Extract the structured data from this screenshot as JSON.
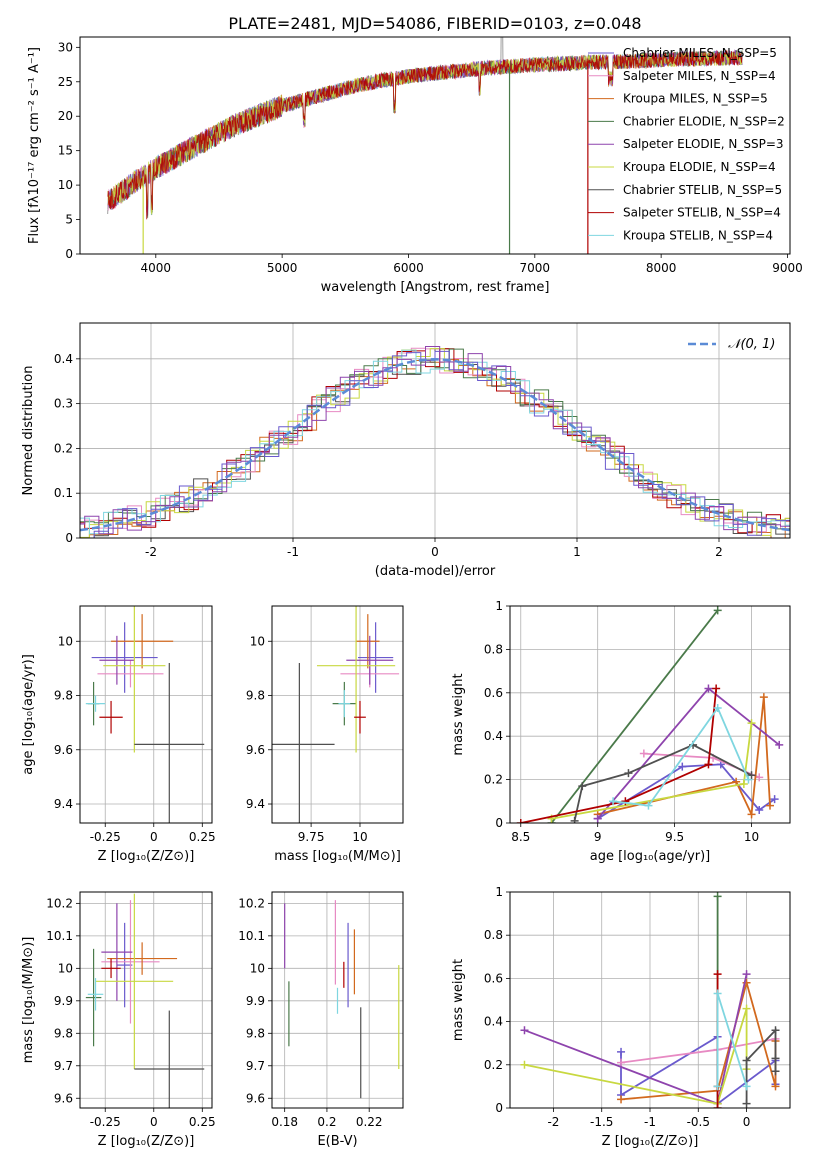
{
  "figure": {
    "title": "PLATE=2481, MJD=54086, FIBERID=0103, z=0.048"
  },
  "colors": [
    "#6a5acd",
    "#e78ac3",
    "#d2691e",
    "#4a7a4a",
    "#8e44ad",
    "#c8d840",
    "#505050",
    "#b00000",
    "#7fd6e0"
  ],
  "chart_data": [
    {
      "id": "spectrum",
      "type": "line",
      "xlabel": "wavelength [Angstrom, rest frame]",
      "ylabel": "Flux [fλ10⁻¹⁷ erg cm⁻² s⁻¹ A⁻¹]",
      "xlim": [
        3400,
        9020
      ],
      "ylim": [
        0,
        31.5
      ],
      "xticks": [
        4000,
        5000,
        6000,
        7000,
        8000,
        9000
      ],
      "yticks": [
        0,
        5,
        10,
        15,
        20,
        25,
        30
      ],
      "x": [
        3620,
        3800,
        4000,
        4200,
        4400,
        4600,
        4800,
        5000,
        5200,
        5400,
        5600,
        5800,
        6000,
        6200,
        6400,
        6600,
        6800,
        7000,
        7200,
        7400,
        7600,
        7800,
        8000,
        8200,
        8400,
        8600
      ],
      "y": [
        7.5,
        10,
        12.5,
        14.5,
        16.5,
        18.5,
        20,
        21.5,
        22.5,
        23.5,
        24.5,
        25.2,
        25.8,
        26.2,
        26.6,
        27,
        27.2,
        27.5,
        27.6,
        27.8,
        27.9,
        28,
        28.2,
        28.3,
        28.4,
        28.5
      ],
      "legend": [
        "Chabrier MILES, N_SSP=5",
        "Salpeter MILES, N_SSP=4",
        "Kroupa MILES, N_SSP=5",
        "Chabrier ELODIE, N_SSP=2",
        "Salpeter ELODIE, N_SSP=3",
        "Kroupa ELODIE, N_SSP=4",
        "Chabrier STELIB, N_SSP=5",
        "Salpeter STELIB, N_SSP=4",
        "Kroupa STELIB, N_SSP=4"
      ],
      "legend_placement": "upper-right",
      "grid": false
    },
    {
      "id": "residuals",
      "type": "step",
      "xlabel": "(data-model)/error",
      "ylabel": "Normed distribution",
      "xlim": [
        -2.5,
        2.5
      ],
      "ylim": [
        0,
        0.48
      ],
      "xticks": [
        -2,
        -1,
        0,
        1,
        2
      ],
      "yticks": [
        0.0,
        0.1,
        0.2,
        0.3,
        0.4
      ],
      "reference_label": "𝒩(0, 1)",
      "grid": true,
      "legend_placement": "upper-right"
    },
    {
      "id": "age_Z",
      "type": "errorbar",
      "xlabel": "Z [log₁₀(Z/Z⊙)]",
      "ylabel": "age  [log₁₀(age/yr)]",
      "xlim": [
        -0.38,
        0.3
      ],
      "ylim": [
        9.33,
        10.13
      ],
      "xticks": [
        -0.25,
        0.0,
        0.25
      ],
      "yticks": [
        9.4,
        9.6,
        9.8,
        10.0
      ],
      "ytick_fmt": 1,
      "points": [
        {
          "x": -0.15,
          "y": 9.94,
          "ex": 0.17,
          "ey": 0.13
        },
        {
          "x": -0.12,
          "y": 9.88,
          "ex": 0.17,
          "ey": 0.05
        },
        {
          "x": -0.06,
          "y": 10.0,
          "ex": 0.16,
          "ey": 0.1
        },
        {
          "x": -0.31,
          "y": 9.77,
          "ex": 0.03,
          "ey": 0.08
        },
        {
          "x": -0.19,
          "y": 9.93,
          "ex": 0.09,
          "ey": 0.09
        },
        {
          "x": -0.1,
          "y": 9.91,
          "ex": 0.16,
          "ey": 0.32
        },
        {
          "x": 0.08,
          "y": 9.62,
          "ex": 0.18,
          "ey": 0.3
        },
        {
          "x": -0.22,
          "y": 9.72,
          "ex": 0.06,
          "ey": 0.06
        },
        {
          "x": -0.3,
          "y": 9.77,
          "ex": 0.05,
          "ey": 0.03
        }
      ]
    },
    {
      "id": "age_mass",
      "type": "errorbar",
      "xlabel": "mass [log₁₀(M/M⊙)]",
      "ylabel": "",
      "xlim": [
        9.55,
        10.22
      ],
      "ylim": [
        9.33,
        10.13
      ],
      "xticks": [
        9.75,
        10.0
      ],
      "yticks": [
        9.4,
        9.6,
        9.8,
        10.0
      ],
      "ytick_fmt": 1,
      "points": [
        {
          "x": 10.08,
          "y": 9.94,
          "ex": 0.09,
          "ey": 0.13
        },
        {
          "x": 10.05,
          "y": 9.88,
          "ex": 0.15,
          "ey": 0.05
        },
        {
          "x": 10.04,
          "y": 10.0,
          "ex": 0.06,
          "ey": 0.1
        },
        {
          "x": 9.92,
          "y": 9.77,
          "ex": 0.06,
          "ey": 0.08
        },
        {
          "x": 10.05,
          "y": 9.93,
          "ex": 0.12,
          "ey": 0.09
        },
        {
          "x": 9.98,
          "y": 9.91,
          "ex": 0.2,
          "ey": 0.32
        },
        {
          "x": 9.69,
          "y": 9.62,
          "ex": 0.18,
          "ey": 0.3
        },
        {
          "x": 10.0,
          "y": 9.72,
          "ex": 0.03,
          "ey": 0.06
        },
        {
          "x": 9.92,
          "y": 9.77,
          "ex": 0.03,
          "ey": 0.05
        }
      ]
    },
    {
      "id": "weight_age",
      "type": "line",
      "xlabel": "age  [log₁₀(age/yr)]",
      "ylabel": "mass weight",
      "xlim": [
        8.43,
        10.25
      ],
      "ylim": [
        0,
        1
      ],
      "xticks": [
        8.5,
        9.0,
        9.5,
        10.0
      ],
      "yticks": [
        0.0,
        0.2,
        0.4,
        0.6,
        0.8,
        1.0
      ],
      "xtick_fmt": 1,
      "ytick_fmt": 1,
      "series": [
        {
          "x": [
            9.0,
            9.55,
            9.8,
            10.05,
            10.15
          ],
          "y": [
            0.02,
            0.26,
            0.27,
            0.06,
            0.11
          ]
        },
        {
          "x": [
            9.3,
            9.75,
            10.05
          ],
          "y": [
            0.32,
            0.3,
            0.21
          ]
        },
        {
          "x": [
            9.0,
            9.9,
            10.0,
            10.08,
            10.12
          ],
          "y": [
            0.04,
            0.19,
            0.04,
            0.58,
            0.08
          ]
        },
        {
          "x": [
            8.7,
            9.78
          ],
          "y": [
            0.0,
            0.98
          ]
        },
        {
          "x": [
            9.0,
            9.72,
            10.18
          ],
          "y": [
            0.02,
            0.62,
            0.36
          ]
        },
        {
          "x": [
            8.7,
            9.95,
            10.0
          ],
          "y": [
            0.02,
            0.18,
            0.46
          ]
        },
        {
          "x": [
            8.85,
            8.9,
            9.2,
            9.62,
            10.0
          ],
          "y": [
            0.01,
            0.17,
            0.23,
            0.36,
            0.22
          ]
        },
        {
          "x": [
            8.5,
            9.18,
            9.72,
            9.77
          ],
          "y": [
            0.0,
            0.1,
            0.27,
            0.62
          ]
        },
        {
          "x": [
            9.1,
            9.33,
            9.78,
            9.98
          ],
          "y": [
            0.1,
            0.08,
            0.53,
            0.2
          ]
        }
      ]
    },
    {
      "id": "mass_Z",
      "type": "errorbar",
      "xlabel": "Z [log₁₀(Z/Z⊙)]",
      "ylabel": "mass [log₁₀(M/M⊙)]",
      "xlim": [
        -0.38,
        0.3
      ],
      "ylim": [
        9.57,
        10.235
      ],
      "xticks": [
        -0.25,
        0.0,
        0.25
      ],
      "yticks": [
        9.6,
        9.7,
        9.8,
        9.9,
        10.0,
        10.1,
        10.2
      ],
      "ytick_fmt": 1,
      "points": [
        {
          "x": -0.15,
          "y": 10.01,
          "ex": 0.04,
          "ey": 0.13
        },
        {
          "x": -0.12,
          "y": 10.02,
          "ex": 0.15,
          "ey": 0.19
        },
        {
          "x": -0.06,
          "y": 10.03,
          "ex": 0.18,
          "ey": 0.05
        },
        {
          "x": -0.31,
          "y": 9.91,
          "ex": 0.04,
          "ey": 0.15
        },
        {
          "x": -0.19,
          "y": 10.05,
          "ex": 0.08,
          "ey": 0.15
        },
        {
          "x": -0.1,
          "y": 9.96,
          "ex": 0.2,
          "ey": 0.27
        },
        {
          "x": 0.08,
          "y": 9.69,
          "ex": 0.18,
          "ey": 0.18
        },
        {
          "x": -0.22,
          "y": 10.0,
          "ex": 0.05,
          "ey": 0.03
        },
        {
          "x": -0.3,
          "y": 9.92,
          "ex": 0.04,
          "ey": 0.05
        }
      ]
    },
    {
      "id": "mass_ebv",
      "type": "errorbar",
      "xlabel": "E(B-V)",
      "ylabel": "",
      "xlim": [
        0.174,
        0.236
      ],
      "ylim": [
        9.57,
        10.235
      ],
      "xticks": [
        0.18,
        0.2,
        0.22
      ],
      "yticks": [
        9.6,
        9.7,
        9.8,
        9.9,
        10.0,
        10.1,
        10.2
      ],
      "xtick_fmt": 2,
      "ytick_fmt": 1,
      "points": [
        {
          "x": 0.21,
          "y": 10.01,
          "ex": 0,
          "ey": 0.13
        },
        {
          "x": 0.204,
          "y": 10.08,
          "ex": 0,
          "ey": 0.13
        },
        {
          "x": 0.213,
          "y": 10.02,
          "ex": 0,
          "ey": 0.1
        },
        {
          "x": 0.182,
          "y": 9.86,
          "ex": 0,
          "ey": 0.1
        },
        {
          "x": 0.18,
          "y": 10.1,
          "ex": 0,
          "ey": 0.1
        },
        {
          "x": 0.234,
          "y": 9.85,
          "ex": 0,
          "ey": 0.16
        },
        {
          "x": 0.216,
          "y": 9.74,
          "ex": 0,
          "ey": 0.14
        },
        {
          "x": 0.208,
          "y": 9.98,
          "ex": 0,
          "ey": 0.04
        },
        {
          "x": 0.205,
          "y": 9.9,
          "ex": 0,
          "ey": 0.04
        }
      ]
    },
    {
      "id": "weight_Z",
      "type": "line",
      "xlabel": "Z [log₁₀(Z/Z⊙)]",
      "ylabel": "mass weight",
      "xlim": [
        -2.45,
        0.45
      ],
      "ylim": [
        0,
        1
      ],
      "xticks": [
        -2.0,
        -1.5,
        -1.0,
        -0.5,
        0.0
      ],
      "yticks": [
        0.0,
        0.2,
        0.4,
        0.6,
        0.8,
        1.0
      ],
      "xtick_fmt": 1,
      "ytick_fmt": 1,
      "series": [
        {
          "x": [
            -1.3,
            -1.3,
            -0.3,
            -0.3,
            0.3,
            0.3
          ],
          "y": [
            0.26,
            0.06,
            0.33,
            0.02,
            0.22,
            0.11
          ]
        },
        {
          "x": [
            -1.3,
            -0.3,
            0.3
          ],
          "y": [
            0.21,
            0.27,
            0.32
          ]
        },
        {
          "x": [
            -1.3,
            -0.3,
            0.0,
            0.3,
            0.3
          ],
          "y": [
            0.04,
            0.08,
            0.58,
            0.1,
            0.31
          ]
        },
        {
          "x": [
            -0.3,
            -0.3
          ],
          "y": [
            0.02,
            0.98
          ]
        },
        {
          "x": [
            -2.3,
            -0.3,
            0.0
          ],
          "y": [
            0.36,
            0.02,
            0.62
          ]
        },
        {
          "x": [
            -2.3,
            -0.3,
            0.0,
            0.0
          ],
          "y": [
            0.2,
            0.02,
            0.46,
            0.18
          ]
        },
        {
          "x": [
            0.0,
            0.0,
            0.3,
            0.3,
            0.3
          ],
          "y": [
            0.02,
            0.22,
            0.36,
            0.23,
            0.17
          ]
        },
        {
          "x": [
            -0.3,
            -0.3,
            -0.3
          ],
          "y": [
            0.0,
            0.62,
            0.1
          ]
        },
        {
          "x": [
            -0.3,
            -0.3,
            0.0
          ],
          "y": [
            0.1,
            0.53,
            0.1
          ]
        }
      ]
    }
  ]
}
